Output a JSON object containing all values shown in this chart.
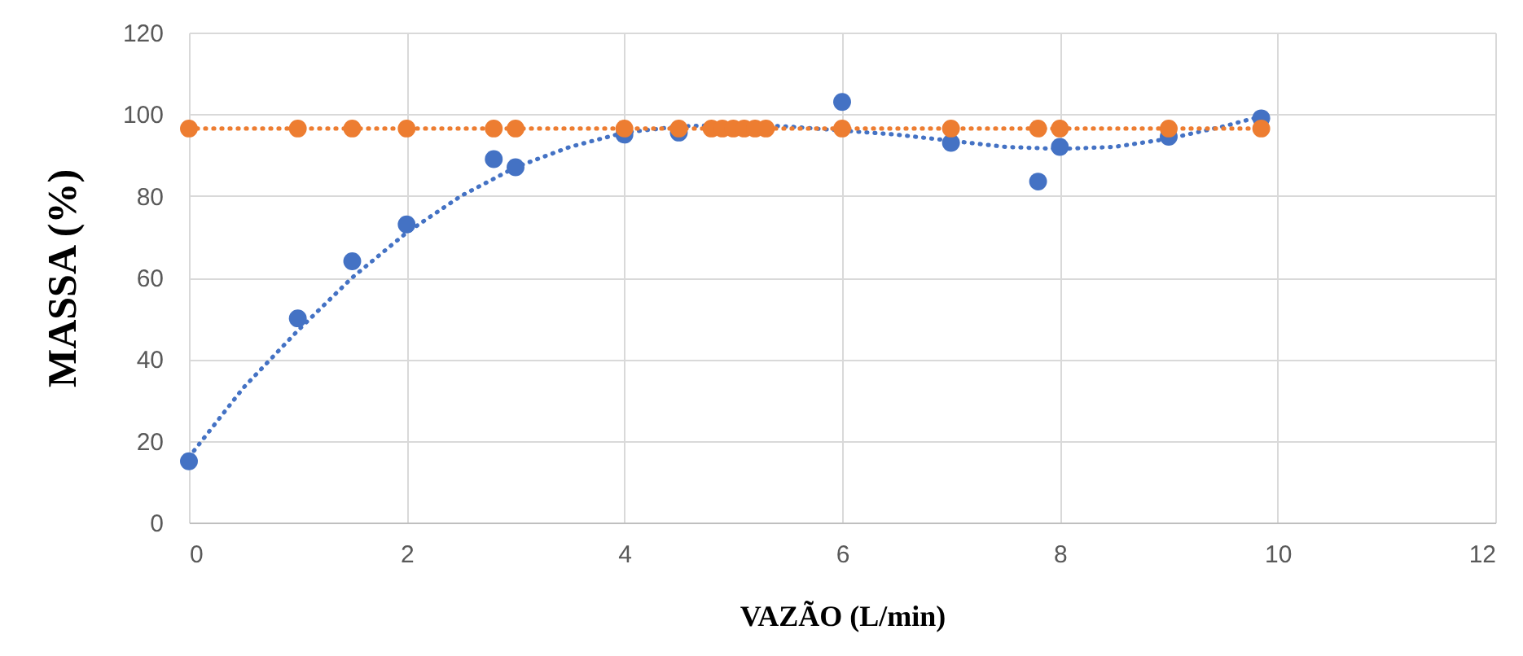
{
  "chart_data": {
    "type": "scatter",
    "xlabel": "VAZÃO (L/min)",
    "ylabel": "MASSA (%)",
    "xlim": [
      0,
      12
    ],
    "xticks": [
      0,
      2,
      4,
      6,
      8,
      10,
      12
    ],
    "ylim": [
      0,
      120
    ],
    "yticks": [
      0,
      20,
      40,
      60,
      80,
      100,
      120
    ],
    "grid": true,
    "marker": "circle",
    "series": [
      {
        "color": "#4472c4",
        "x": [
          0,
          1,
          1.5,
          2,
          2.8,
          3,
          4,
          4.5,
          6,
          7,
          7.8,
          8,
          9,
          9.85
        ],
        "values": [
          15,
          50,
          64,
          73,
          89,
          87,
          95,
          95.5,
          103,
          93,
          83.5,
          92,
          94.5,
          99
        ]
      },
      {
        "color": "#ed7d31",
        "x": [
          0,
          1,
          1.5,
          2,
          2.8,
          3,
          4,
          4.5,
          4.8,
          4.9,
          5,
          5.1,
          5.2,
          5.3,
          6,
          7,
          7.8,
          8,
          9,
          9.85
        ],
        "values": [
          96.5,
          96.5,
          96.5,
          96.5,
          96.5,
          96.5,
          96.5,
          96.5,
          96.5,
          96.5,
          96.5,
          96.5,
          96.5,
          96.5,
          96.5,
          96.5,
          96.5,
          96.5,
          96.5,
          96.5
        ]
      },
      {
        "type": "line",
        "color": "#4472c4",
        "line_style": "dotted",
        "marker": "none",
        "x": [
          0,
          0.5,
          1,
          1.5,
          2,
          2.5,
          3,
          3.5,
          4,
          4.5,
          5,
          5.5,
          6,
          6.5,
          7,
          7.5,
          8,
          8.5,
          9,
          9.5,
          9.85
        ],
        "values": [
          16,
          33,
          47,
          60,
          71,
          80,
          87,
          92,
          95.5,
          97,
          97.5,
          97,
          96,
          95,
          93.5,
          92,
          91.5,
          92,
          94,
          97,
          99.5
        ]
      },
      {
        "type": "line",
        "color": "#ed7d31",
        "line_style": "dotted",
        "marker": "none",
        "x": [
          0,
          9.85
        ],
        "values": [
          96.5,
          96.5
        ]
      }
    ]
  }
}
